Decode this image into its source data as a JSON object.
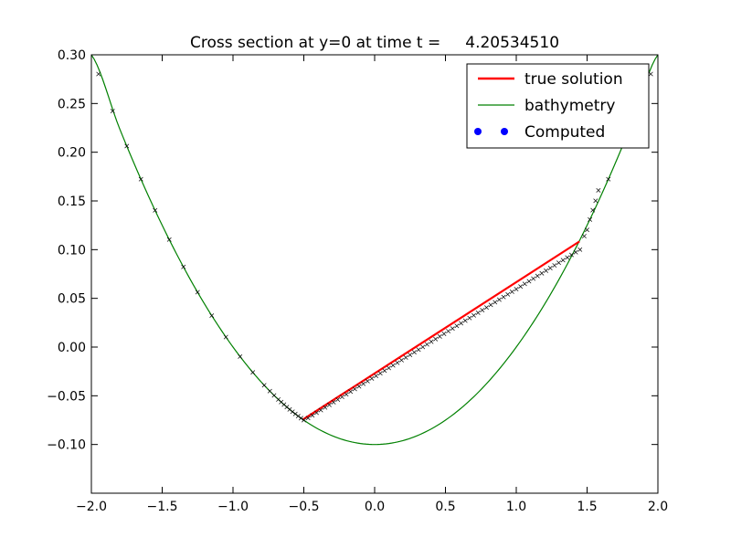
{
  "chart_data": {
    "type": "line",
    "title": "Cross section at y=0 at time t =     4.20534510",
    "xlabel": "",
    "ylabel": "",
    "xlim": [
      -2.0,
      2.0
    ],
    "ylim": [
      -0.15,
      0.3
    ],
    "x_ticks": [
      -2.0,
      -1.5,
      -1.0,
      -0.5,
      0.0,
      0.5,
      1.0,
      1.5,
      2.0
    ],
    "x_tick_labels": [
      "−2.0",
      "−1.5",
      "−1.0",
      "−0.5",
      "0.0",
      "0.5",
      "1.0",
      "1.5",
      "2.0"
    ],
    "y_ticks": [
      -0.1,
      -0.05,
      0.0,
      0.05,
      0.1,
      0.15,
      0.2,
      0.25,
      0.3
    ],
    "y_tick_labels": [
      "−0.10",
      "−0.05",
      "0.00",
      "0.05",
      "0.10",
      "0.15",
      "0.20",
      "0.25",
      "0.30"
    ],
    "grid": false,
    "legend_position": "top-right",
    "series": [
      {
        "name": "true solution",
        "kind": "line",
        "color": "#ff0000",
        "x": [
          -0.506,
          1.446
        ],
        "y": [
          -0.0744,
          0.1084
        ]
      },
      {
        "name": "bathymetry",
        "kind": "curve",
        "color": "#008000",
        "x": [
          -2.0,
          -1.8,
          -1.6,
          -1.4,
          -1.2,
          -1.0,
          -0.8,
          -0.6,
          -0.4,
          -0.2,
          0.0,
          0.2,
          0.4,
          0.6,
          0.8,
          1.0,
          1.2,
          1.4,
          1.6,
          1.8,
          2.0
        ],
        "y": [
          0.3,
          0.224,
          0.156,
          0.096,
          0.044,
          0.0,
          -0.036,
          -0.064,
          -0.084,
          -0.096,
          -0.1,
          -0.096,
          -0.084,
          -0.064,
          -0.036,
          0.0,
          0.044,
          0.096,
          0.156,
          0.224,
          0.3
        ]
      },
      {
        "name": "Computed",
        "kind": "markers",
        "color": "#0000ff",
        "x": [
          -1.95,
          -1.85,
          -1.75,
          -1.65,
          -1.55,
          -1.45,
          -1.35,
          -1.25,
          -1.15,
          -1.05,
          -0.95,
          -0.86,
          -0.78,
          -0.74,
          -0.71,
          -0.68,
          -0.66,
          -0.64,
          -0.62,
          -0.6,
          -0.58,
          -0.56,
          -0.54,
          -0.52,
          -0.5,
          -0.47,
          -0.44,
          -0.41,
          -0.38,
          -0.35,
          -0.32,
          -0.29,
          -0.26,
          -0.23,
          -0.2,
          -0.17,
          -0.14,
          -0.11,
          -0.08,
          -0.05,
          -0.02,
          0.01,
          0.04,
          0.07,
          0.1,
          0.13,
          0.16,
          0.19,
          0.22,
          0.25,
          0.28,
          0.31,
          0.34,
          0.37,
          0.4,
          0.43,
          0.46,
          0.49,
          0.52,
          0.55,
          0.58,
          0.61,
          0.64,
          0.67,
          0.7,
          0.73,
          0.76,
          0.79,
          0.82,
          0.85,
          0.88,
          0.91,
          0.94,
          0.97,
          1.0,
          1.03,
          1.06,
          1.09,
          1.12,
          1.15,
          1.18,
          1.21,
          1.24,
          1.27,
          1.3,
          1.33,
          1.36,
          1.39,
          1.42,
          1.45,
          1.48,
          1.5,
          1.52,
          1.54,
          1.56,
          1.58,
          1.65,
          1.75,
          1.85,
          1.95
        ],
        "y": [
          0.2803,
          0.2423,
          0.2063,
          0.1723,
          0.1403,
          0.1103,
          0.0823,
          0.0563,
          0.0323,
          0.0103,
          -0.0098,
          -0.026,
          -0.0392,
          -0.0452,
          -0.0496,
          -0.0538,
          -0.0564,
          -0.059,
          -0.0616,
          -0.064,
          -0.0664,
          -0.0686,
          -0.0708,
          -0.073,
          -0.075,
          -0.0728,
          -0.0701,
          -0.0674,
          -0.0647,
          -0.062,
          -0.0593,
          -0.0566,
          -0.0539,
          -0.0512,
          -0.0485,
          -0.0458,
          -0.0431,
          -0.0404,
          -0.0377,
          -0.035,
          -0.0323,
          -0.0296,
          -0.0269,
          -0.0242,
          -0.0215,
          -0.0188,
          -0.0161,
          -0.0134,
          -0.0107,
          -0.008,
          -0.0053,
          -0.0026,
          0.0001,
          0.0028,
          0.0055,
          0.0082,
          0.0109,
          0.0136,
          0.0163,
          0.019,
          0.0217,
          0.0244,
          0.0271,
          0.0298,
          0.0325,
          0.0352,
          0.0379,
          0.0406,
          0.0433,
          0.046,
          0.0487,
          0.0514,
          0.0541,
          0.0568,
          0.0595,
          0.0622,
          0.0649,
          0.0676,
          0.0703,
          0.073,
          0.0757,
          0.0784,
          0.0811,
          0.0838,
          0.0865,
          0.0892,
          0.0919,
          0.0946,
          0.0973,
          0.1,
          0.1138,
          0.1203,
          0.1309,
          0.1405,
          0.1502,
          0.1608,
          0.1723,
          0.2063,
          0.2423,
          0.2803
        ]
      }
    ]
  }
}
